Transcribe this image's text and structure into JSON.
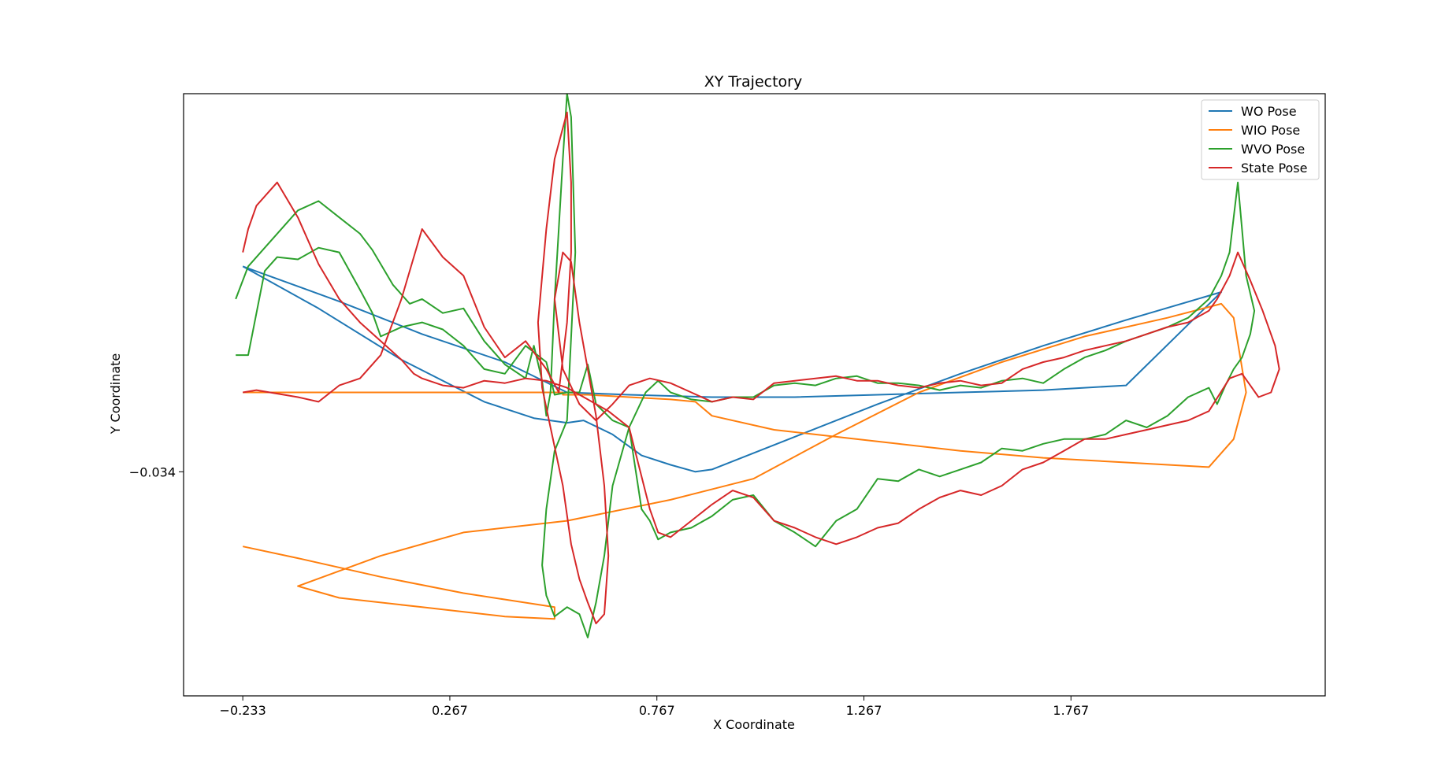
{
  "chart_data": {
    "type": "line",
    "title": "XY Trajectory",
    "xlabel": "X Coordinate",
    "ylabel": "Y Coordinate",
    "xlim": [
      -0.376,
      2.381
    ],
    "ylim": [
      -0.13,
      0.128
    ],
    "x_ticks": [
      -0.233,
      0.267,
      0.767,
      1.267,
      1.767
    ],
    "x_tick_labels": [
      "−0.233",
      "0.267",
      "0.767",
      "1.267",
      "1.767"
    ],
    "y_ticks": [
      -0.034
    ],
    "y_tick_labels": [
      "−0.034"
    ],
    "grid": false,
    "legend_position": "top-right",
    "series": [
      {
        "name": "WO Pose",
        "color": "#1f77b4",
        "x": [
          -0.233,
          -0.05,
          0.15,
          0.35,
          0.47,
          0.55,
          0.59,
          0.66,
          0.73,
          0.8,
          0.86,
          0.9,
          1.1,
          1.3,
          1.5,
          1.7,
          1.9,
          2.13,
          1.9,
          1.7,
          1.5,
          1.3,
          1.1,
          0.9,
          0.7,
          0.55,
          0.4,
          0.2,
          0.0,
          -0.233
        ],
        "y": [
          0.054,
          0.036,
          0.014,
          -0.004,
          -0.011,
          -0.013,
          -0.012,
          -0.018,
          -0.027,
          -0.031,
          -0.034,
          -0.033,
          -0.019,
          -0.005,
          0.008,
          0.02,
          0.031,
          0.043,
          0.003,
          0.001,
          0.0,
          -0.001,
          -0.002,
          -0.002,
          -0.001,
          0.0,
          0.013,
          0.025,
          0.039,
          0.054
        ]
      },
      {
        "name": "WIO Pose",
        "color": "#ff7f0e",
        "x": [
          -0.233,
          -0.1,
          0.1,
          0.3,
          0.52,
          0.52,
          0.4,
          0.2,
          0.0,
          -0.1,
          0.1,
          0.3,
          0.55,
          0.8,
          1.0,
          1.2,
          1.4,
          1.6,
          1.8,
          2.0,
          2.13,
          2.16,
          2.19,
          2.16,
          2.1,
          1.9,
          1.7,
          1.5,
          1.35,
          1.2,
          1.05,
          0.9,
          0.86,
          0.8,
          0.7,
          0.6,
          0.56,
          0.54,
          0.54,
          0.46,
          0.3,
          0.1,
          -0.1,
          -0.233
        ],
        "y": [
          -0.066,
          -0.071,
          -0.079,
          -0.086,
          -0.092,
          -0.097,
          -0.096,
          -0.092,
          -0.088,
          -0.083,
          -0.07,
          -0.06,
          -0.055,
          -0.046,
          -0.037,
          -0.018,
          0.0,
          0.013,
          0.024,
          0.032,
          0.038,
          0.032,
          0.0,
          -0.02,
          -0.032,
          -0.03,
          -0.028,
          -0.025,
          -0.022,
          -0.019,
          -0.016,
          -0.01,
          -0.004,
          -0.003,
          -0.002,
          -0.001,
          -0.001,
          -0.001,
          0.0,
          0.0,
          0.0,
          0.0,
          -0.0,
          0.0
        ]
      },
      {
        "name": "WVO Pose",
        "color": "#2ca02c",
        "x": [
          -0.25,
          -0.22,
          -0.15,
          -0.1,
          -0.05,
          0.0,
          0.05,
          0.08,
          0.1,
          0.13,
          0.15,
          0.17,
          0.2,
          0.25,
          0.3,
          0.35,
          0.4,
          0.45,
          0.47,
          0.49,
          0.5,
          0.51,
          0.52,
          0.53,
          0.54,
          0.55,
          0.56,
          0.57,
          0.55,
          0.52,
          0.5,
          0.49,
          0.5,
          0.52,
          0.55,
          0.58,
          0.6,
          0.62,
          0.64,
          0.66,
          0.7,
          0.74,
          0.77,
          0.8,
          0.85,
          0.9,
          0.95,
          1.0,
          1.05,
          1.1,
          1.15,
          1.2,
          1.25,
          1.3,
          1.35,
          1.4,
          1.45,
          1.5,
          1.55,
          1.6,
          1.65,
          1.7,
          1.75,
          1.8,
          1.85,
          1.9,
          1.95,
          2.0,
          2.05,
          2.1,
          2.13,
          2.15,
          2.16,
          2.17,
          2.18,
          2.19,
          2.21,
          2.2,
          2.18,
          2.16,
          2.14,
          2.12,
          2.1,
          2.05,
          2.0,
          1.95,
          1.9,
          1.85,
          1.8,
          1.75,
          1.7,
          1.65,
          1.6,
          1.55,
          1.5,
          1.45,
          1.4,
          1.35,
          1.3,
          1.25,
          1.2,
          1.15,
          1.1,
          1.05,
          1.0,
          0.95,
          0.9,
          0.85,
          0.8,
          0.77,
          0.75,
          0.73,
          0.7,
          0.66,
          0.62,
          0.6,
          0.58,
          0.55,
          0.52,
          0.5,
          0.45,
          0.4,
          0.35,
          0.3,
          0.25,
          0.2,
          0.15,
          0.1,
          0.08,
          0.05,
          0.0,
          -0.05,
          -0.1,
          -0.15,
          -0.18,
          -0.2,
          -0.22,
          -0.25
        ],
        "y": [
          0.04,
          0.054,
          0.068,
          0.078,
          0.082,
          0.075,
          0.068,
          0.061,
          0.055,
          0.046,
          0.042,
          0.038,
          0.04,
          0.034,
          0.036,
          0.022,
          0.012,
          0.006,
          0.02,
          0.005,
          -0.01,
          0.0,
          0.04,
          0.07,
          0.1,
          0.128,
          0.118,
          0.06,
          -0.012,
          -0.025,
          -0.05,
          -0.074,
          -0.087,
          -0.096,
          -0.092,
          -0.095,
          -0.105,
          -0.09,
          -0.07,
          -0.04,
          -0.015,
          0.0,
          0.005,
          0.0,
          -0.003,
          -0.004,
          -0.002,
          -0.002,
          0.003,
          0.004,
          0.003,
          0.006,
          0.007,
          0.004,
          0.004,
          0.003,
          0.001,
          0.003,
          0.002,
          0.005,
          0.006,
          0.004,
          0.01,
          0.015,
          0.018,
          0.022,
          0.025,
          0.028,
          0.032,
          0.04,
          0.05,
          0.06,
          0.075,
          0.09,
          0.07,
          0.05,
          0.035,
          0.025,
          0.015,
          0.01,
          0.003,
          -0.005,
          0.002,
          -0.002,
          -0.01,
          -0.015,
          -0.012,
          -0.018,
          -0.02,
          -0.02,
          -0.022,
          -0.025,
          -0.024,
          -0.03,
          -0.033,
          -0.036,
          -0.033,
          -0.038,
          -0.037,
          -0.05,
          -0.055,
          -0.066,
          -0.06,
          -0.055,
          -0.044,
          -0.046,
          -0.053,
          -0.058,
          -0.06,
          -0.063,
          -0.055,
          -0.05,
          -0.015,
          -0.012,
          -0.005,
          0.012,
          0.0,
          0.0,
          -0.001,
          0.013,
          0.02,
          0.008,
          0.01,
          0.02,
          0.027,
          0.03,
          0.028,
          0.024,
          0.034,
          0.044,
          0.06,
          0.062,
          0.057,
          0.058,
          0.052,
          0.034,
          0.016,
          0.016
        ]
      },
      {
        "name": "State Pose",
        "color": "#d62728",
        "x": [
          -0.233,
          -0.2,
          -0.1,
          -0.05,
          0.0,
          0.05,
          0.1,
          0.15,
          0.2,
          0.25,
          0.3,
          0.35,
          0.4,
          0.45,
          0.5,
          0.53,
          0.55,
          0.56,
          0.56,
          0.55,
          0.52,
          0.5,
          0.48,
          0.49,
          0.51,
          0.54,
          0.56,
          0.58,
          0.6,
          0.62,
          0.64,
          0.65,
          0.64,
          0.62,
          0.6,
          0.58,
          0.56,
          0.54,
          0.52,
          0.54,
          0.58,
          0.62,
          0.66,
          0.7,
          0.75,
          0.8,
          0.85,
          0.9,
          0.95,
          1.0,
          1.05,
          1.1,
          1.15,
          1.2,
          1.25,
          1.3,
          1.35,
          1.4,
          1.45,
          1.5,
          1.55,
          1.6,
          1.65,
          1.7,
          1.75,
          1.8,
          1.85,
          1.9,
          1.95,
          2.0,
          2.05,
          2.1,
          2.12,
          2.15,
          2.17,
          2.2,
          2.23,
          2.26,
          2.27,
          2.25,
          2.22,
          2.2,
          2.18,
          2.15,
          2.1,
          2.05,
          2.0,
          1.95,
          1.9,
          1.85,
          1.8,
          1.75,
          1.7,
          1.65,
          1.6,
          1.55,
          1.5,
          1.45,
          1.4,
          1.35,
          1.3,
          1.25,
          1.2,
          1.15,
          1.1,
          1.05,
          1.0,
          0.95,
          0.9,
          0.85,
          0.8,
          0.77,
          0.75,
          0.7,
          0.65,
          0.6,
          0.55,
          0.5,
          0.45,
          0.4,
          0.35,
          0.3,
          0.25,
          0.2,
          0.18,
          0.15,
          0.1,
          0.05,
          0.0,
          -0.05,
          -0.1,
          -0.15,
          -0.2,
          -0.22,
          -0.233
        ],
        "y": [
          0.0,
          0.001,
          -0.002,
          -0.004,
          0.003,
          0.006,
          0.016,
          0.04,
          0.07,
          0.058,
          0.05,
          0.028,
          0.015,
          0.022,
          0.01,
          0.0,
          0.03,
          0.06,
          0.09,
          0.12,
          0.1,
          0.07,
          0.03,
          0.002,
          -0.015,
          -0.04,
          -0.065,
          -0.08,
          -0.09,
          -0.099,
          -0.095,
          -0.07,
          -0.04,
          -0.01,
          0.01,
          0.03,
          0.056,
          0.06,
          0.04,
          0.01,
          -0.005,
          -0.012,
          -0.005,
          0.003,
          0.006,
          0.004,
          0.0,
          -0.004,
          -0.002,
          -0.003,
          0.004,
          0.005,
          0.006,
          0.007,
          0.005,
          0.005,
          0.003,
          0.002,
          0.004,
          0.005,
          0.003,
          0.004,
          0.01,
          0.013,
          0.015,
          0.018,
          0.02,
          0.022,
          0.025,
          0.028,
          0.03,
          0.035,
          0.04,
          0.05,
          0.06,
          0.048,
          0.035,
          0.02,
          0.01,
          0.0,
          -0.002,
          0.003,
          0.008,
          0.006,
          -0.008,
          -0.012,
          -0.014,
          -0.016,
          -0.018,
          -0.02,
          -0.02,
          -0.025,
          -0.03,
          -0.033,
          -0.04,
          -0.044,
          -0.042,
          -0.045,
          -0.05,
          -0.056,
          -0.058,
          -0.062,
          -0.065,
          -0.062,
          -0.058,
          -0.055,
          -0.045,
          -0.042,
          -0.048,
          -0.055,
          -0.062,
          -0.06,
          -0.05,
          -0.015,
          -0.008,
          -0.003,
          0.002,
          0.005,
          0.006,
          0.004,
          0.005,
          0.002,
          0.003,
          0.006,
          0.008,
          0.014,
          0.022,
          0.03,
          0.04,
          0.055,
          0.075,
          0.09,
          0.08,
          0.07,
          0.06
        ]
      }
    ]
  }
}
